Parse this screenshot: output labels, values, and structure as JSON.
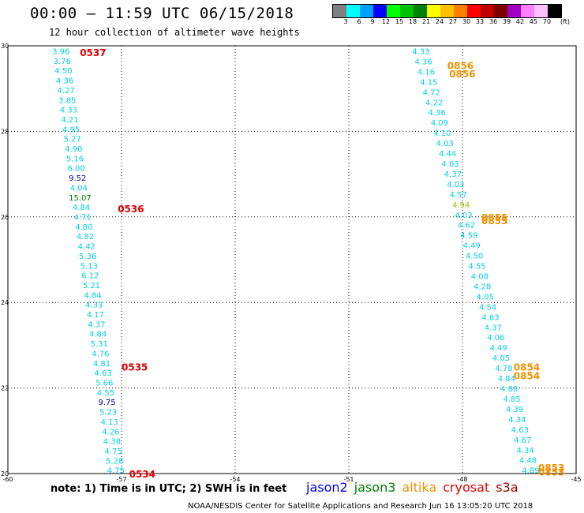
{
  "header": {
    "title": "00:00 – 11:59 UTC 06/15/2018",
    "subtitle": "12 hour collection of altimeter wave heights"
  },
  "colorbar": {
    "unit": "(ft)",
    "colors": [
      "#808080",
      "#00ffff",
      "#00a0ff",
      "#0000ff",
      "#00ff00",
      "#00c000",
      "#008000",
      "#ffff00",
      "#ffc000",
      "#ff8000",
      "#ff0000",
      "#c00000",
      "#800000",
      "#a000c0",
      "#ff80ff",
      "#ffc0ff",
      "#000000"
    ],
    "labels": [
      "3",
      "6",
      "9",
      "12",
      "15",
      "18",
      "21",
      "24",
      "27",
      "30",
      "33",
      "36",
      "39",
      "42",
      "45",
      "70"
    ]
  },
  "axes": {
    "lon_range": [
      -60,
      -45
    ],
    "lat_range": [
      20,
      30
    ],
    "x_ticks": [
      "-60",
      "-57",
      "-54",
      "-51",
      "-48",
      "-45"
    ],
    "y_ticks": [
      "30",
      "28",
      "26",
      "24",
      "22",
      "20"
    ]
  },
  "tracks": {
    "west": {
      "color": "#00d0e0",
      "start_lon": -58.6,
      "end_lon": -57.15,
      "values": [
        "3.96",
        "3.76",
        "4.50",
        "4.36",
        "4.27",
        "3.85",
        "4.33",
        "4.21",
        "4.95",
        "5.27",
        "4.90",
        "5.16",
        "6.00",
        "9.52",
        "4.04",
        "15.07",
        "4.84",
        "4.71",
        "4.80",
        "4.82",
        "4.42",
        "5.36",
        "5.13",
        "6.12",
        "5.21",
        "4.84",
        "4.33",
        "4.17",
        "4.37",
        "4.84",
        "5.31",
        "4.76",
        "4.81",
        "4.63",
        "5.66",
        "4.55",
        "9.75",
        "5.23",
        "4.13",
        "4.26",
        "4.38",
        "4.75",
        "5.28",
        "4.75"
      ],
      "special_colors": {
        "13": "#0000a0",
        "15": "#008000",
        "36": "#0000a0"
      }
    },
    "east": {
      "color": "#00d0e0",
      "start_lon": -49.1,
      "end_lon": -46.2,
      "values": [
        "4.33",
        "4.36",
        "4.16",
        "4.15",
        "4.72",
        "4.22",
        "4.36",
        "4.09",
        "4.10",
        "4.03",
        "4.44",
        "4.03",
        "4.37",
        "4.03",
        "4.57",
        "4.94",
        "4.03",
        "4.62",
        "4.59",
        "4.49",
        "4.50",
        "4.55",
        "4.08",
        "4.28",
        "4.05",
        "4.54",
        "4.63",
        "4.37",
        "4.06",
        "4.49",
        "4.05",
        "4.78",
        "4.84",
        "4.88",
        "4.85",
        "4.39",
        "4.34",
        "4.63",
        "4.67",
        "4.34",
        "4.48",
        "4.89"
      ],
      "special_colors": {
        "15": "#a0c000"
      }
    }
  },
  "time_labels": {
    "west": [
      {
        "text": "0537",
        "lat": 29.85,
        "lon": -58.1,
        "color": "#e00000"
      },
      {
        "text": "0536",
        "lat": 26.2,
        "lon": -57.1,
        "color": "#e00000"
      },
      {
        "text": "0535",
        "lat": 22.5,
        "lon": -57.0,
        "color": "#e00000"
      },
      {
        "text": "0534",
        "lat": 20.0,
        "lon": -56.8,
        "color": "#e00000"
      }
    ],
    "east": [
      {
        "text": "0856",
        "lat": 29.55,
        "lon": -48.4,
        "color": "#f09000"
      },
      {
        "text": "0856",
        "lat": 29.35,
        "lon": -48.35,
        "color": "#f09000"
      },
      {
        "text": "0855",
        "lat": 26.0,
        "lon": -47.5,
        "color": "#f09000"
      },
      {
        "text": "0855",
        "lat": 25.92,
        "lon": -47.5,
        "color": "#f09000"
      },
      {
        "text": "0854",
        "lat": 22.5,
        "lon": -46.65,
        "color": "#f09000"
      },
      {
        "text": "0854",
        "lat": 22.3,
        "lon": -46.65,
        "color": "#f09000"
      },
      {
        "text": "0853",
        "lat": 20.15,
        "lon": -46.0,
        "color": "#f09000"
      },
      {
        "text": "0853",
        "lat": 20.05,
        "lon": -46.0,
        "color": "#f09000"
      }
    ]
  },
  "note": "note: 1) Time is in UTC; 2) SWH is in feet",
  "legend": [
    {
      "name": "jason2",
      "color": "#0000ff"
    },
    {
      "name": "jason3",
      "color": "#008000"
    },
    {
      "name": "altika",
      "color": "#f09000"
    },
    {
      "name": "cryosat",
      "color": "#e00000"
    },
    {
      "name": "s3a",
      "color": "#a00000"
    }
  ],
  "credit": "NOAA/NESDIS Center for Satellite Applications and Research   Jun 16 13:05:20 UTC 2018"
}
